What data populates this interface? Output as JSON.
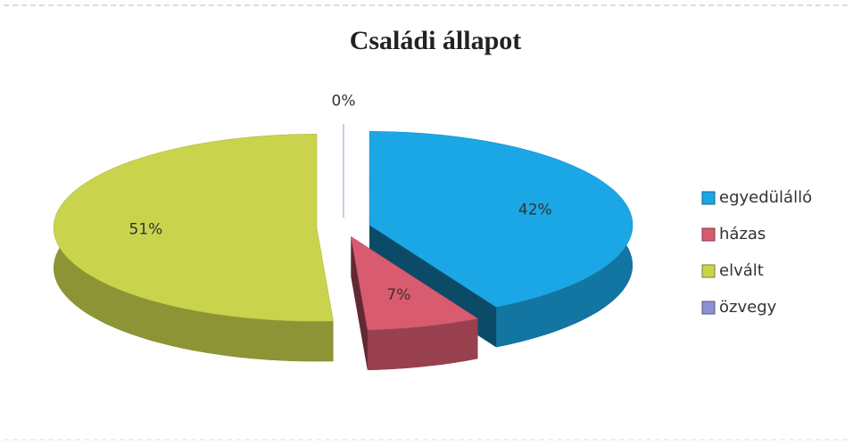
{
  "chart_data": {
    "type": "pie",
    "title": "Családi állapot",
    "categories": [
      "egyedülálló",
      "házas",
      "elvált",
      "özvegy"
    ],
    "values": [
      42,
      7,
      51,
      0
    ],
    "value_labels": [
      "42%",
      "7%",
      "51%",
      "0%"
    ],
    "colors": [
      "#1ba7e6",
      "#d95b70",
      "#c9d44c",
      "#8d91d2"
    ],
    "legend": "right"
  }
}
